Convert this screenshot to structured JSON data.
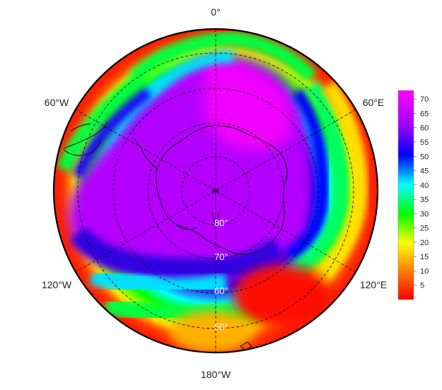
{
  "map": {
    "projection": "south-polar stereographic",
    "longitude_labels": [
      "0°",
      "60°E",
      "120°E",
      "180°W",
      "120°W",
      "60°W"
    ],
    "latitude_labels": [
      "80°",
      "70°",
      "60°",
      "50°"
    ],
    "colors": {
      "coast": "#000000",
      "graticule": "#000000",
      "boundary": "#000000"
    }
  },
  "colorbar": {
    "ticks": [
      "70",
      "65",
      "60",
      "55",
      "50",
      "45",
      "40",
      "35",
      "30",
      "25",
      "20",
      "15",
      "10",
      "5"
    ],
    "range": [
      0,
      73
    ],
    "colors": [
      "#ff0000",
      "#ff8000",
      "#ffff00",
      "#00ff00",
      "#00ffff",
      "#0000ff",
      "#a000ff",
      "#ff00ff"
    ]
  }
}
